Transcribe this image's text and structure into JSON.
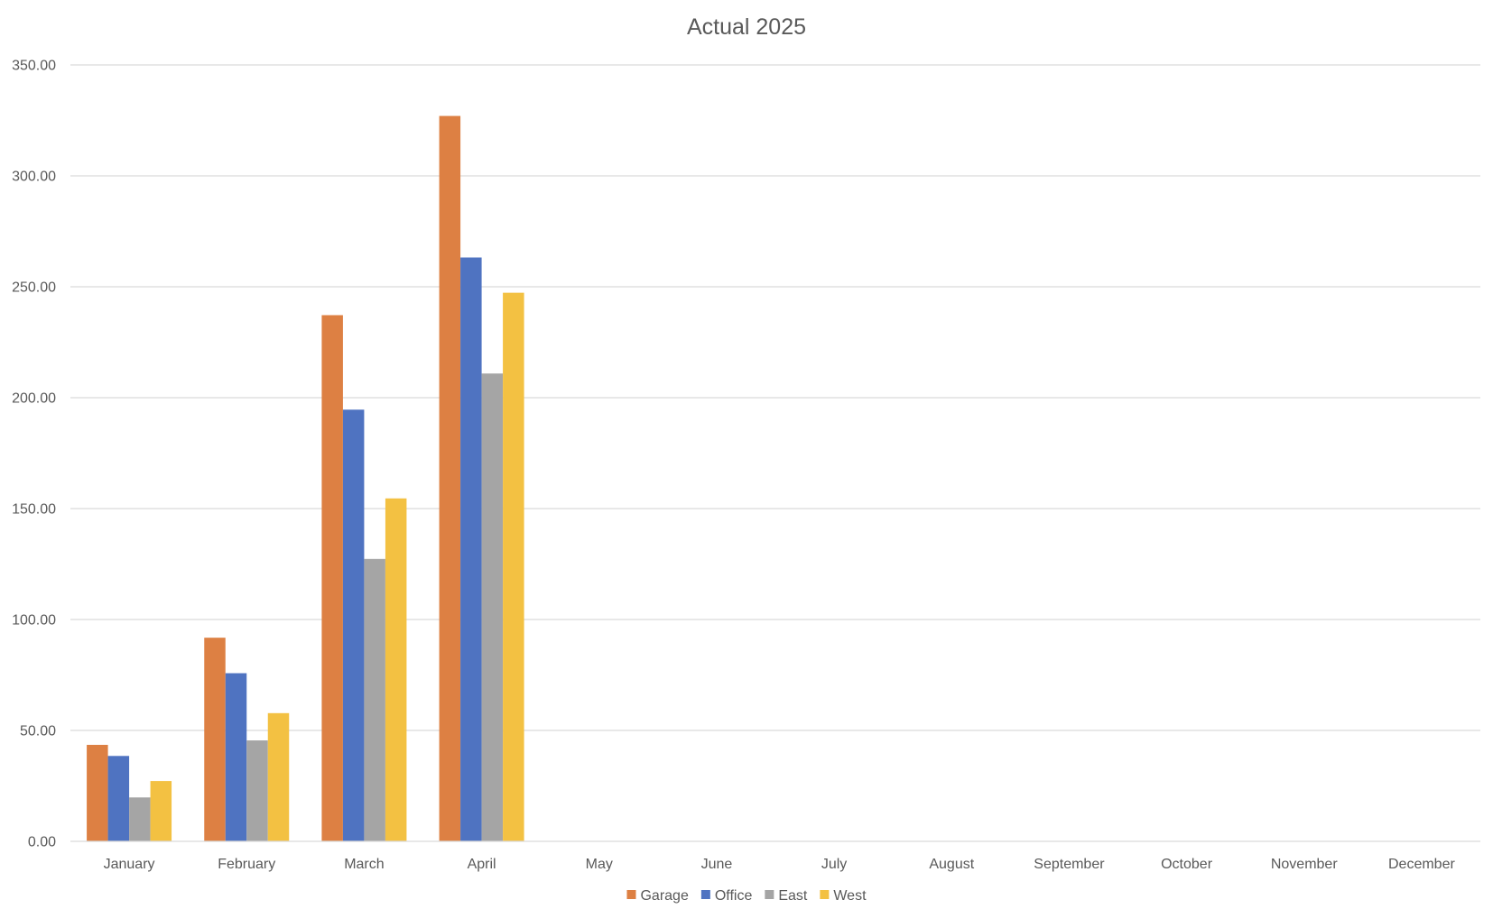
{
  "chart_data": {
    "type": "bar",
    "title": "Actual 2025",
    "xlabel": "",
    "ylabel": "",
    "categories": [
      "January",
      "February",
      "March",
      "April",
      "May",
      "June",
      "July",
      "August",
      "September",
      "October",
      "November",
      "December"
    ],
    "series": [
      {
        "name": "Garage",
        "color": "#dd8043",
        "values": [
          43.5,
          91.8,
          237.2,
          327.0,
          null,
          null,
          null,
          null,
          null,
          null,
          null,
          null
        ]
      },
      {
        "name": "Office",
        "color": "#4f73c1",
        "values": [
          38.5,
          75.8,
          194.6,
          263.2,
          null,
          null,
          null,
          null,
          null,
          null,
          null,
          null
        ]
      },
      {
        "name": "East",
        "color": "#a5a5a5",
        "values": [
          19.8,
          45.5,
          127.3,
          210.9,
          null,
          null,
          null,
          null,
          null,
          null,
          null,
          null
        ]
      },
      {
        "name": "West",
        "color": "#f3c142",
        "values": [
          27.2,
          57.8,
          154.6,
          247.3,
          null,
          null,
          null,
          null,
          null,
          null,
          null,
          null
        ]
      }
    ],
    "ylim": [
      0,
      350
    ],
    "ytick_values": [
      0,
      50,
      100,
      150,
      200,
      250,
      300,
      350
    ],
    "ytick_labels": [
      "0.00",
      "50.00",
      "100.00",
      "150.00",
      "200.00",
      "250.00",
      "300.00",
      "350.00"
    ],
    "grid": true,
    "legend_position": "bottom"
  }
}
